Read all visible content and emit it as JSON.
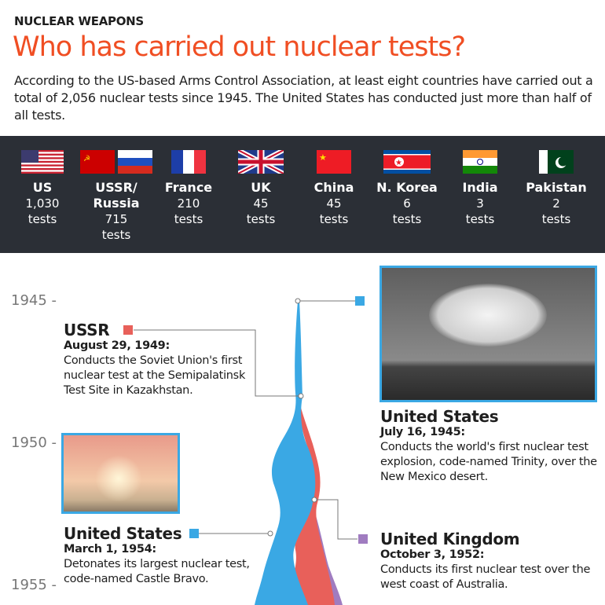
{
  "kicker": "NUCLEAR WEAPONS",
  "title": "Who has carried out nuclear tests?",
  "intro": "According to the US-based Arms Control Association, at least eight countries have carried out a total of 2,056 nuclear tests since 1945. The United States has conducted just more than half of all tests.",
  "countries": [
    {
      "name": "US",
      "count": "1,030",
      "unit": "tests",
      "flag": "us-flag"
    },
    {
      "name": "USSR/ Russia",
      "count": "715",
      "unit": "tests",
      "flag": "ussr-russia-flags"
    },
    {
      "name": "France",
      "count": "210",
      "unit": "tests",
      "flag": "france-flag"
    },
    {
      "name": "UK",
      "count": "45",
      "unit": "tests",
      "flag": "uk-flag"
    },
    {
      "name": "China",
      "count": "45",
      "unit": "tests",
      "flag": "china-flag"
    },
    {
      "name": "N. Korea",
      "count": "6",
      "unit": "tests",
      "flag": "north-korea-flag"
    },
    {
      "name": "India",
      "count": "3",
      "unit": "tests",
      "flag": "india-flag"
    },
    {
      "name": "Pakistan",
      "count": "2",
      "unit": "tests",
      "flag": "pakistan-flag"
    }
  ],
  "years": [
    "1945 -",
    "1950 -",
    "1955 -"
  ],
  "colors": {
    "us": "#3aa8e4",
    "ussr": "#e8605a",
    "uk": "#a07cc0",
    "title": "#f04e23",
    "band": "#2b2f36"
  },
  "events": [
    {
      "country": "USSR",
      "date": "August 29, 1949:",
      "text": "Conducts the Soviet Union's first nuclear test at the Semipalatinsk Test Site in Kazakhstan."
    },
    {
      "country": "United States",
      "date": "July 16, 1945:",
      "text": "Conducts the world's first nuclear test explosion, code-named Trinity, over the New Mexico desert."
    },
    {
      "country": "United States",
      "date": "March 1, 1954:",
      "text": "Detonates its largest nuclear test, code-named Castle Bravo."
    },
    {
      "country": "United Kingdom",
      "date": "October 3, 1952:",
      "text": "Conducts its first nuclear test over the west coast of Australia."
    }
  ]
}
